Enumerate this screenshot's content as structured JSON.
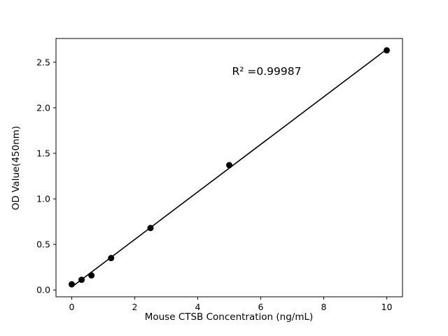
{
  "figure": {
    "background": "#ffffff",
    "foreground": "#000000"
  },
  "chart_data": {
    "type": "scatter",
    "title": "",
    "xlabel": "Mouse CTSB Concentration (ng/mL)",
    "ylabel": "OD Value(450nm)",
    "annotation": "R² =0.99987",
    "r_squared": 0.99987,
    "points": [
      [
        0,
        0.062
      ],
      [
        0.3125,
        0.112
      ],
      [
        0.625,
        0.16
      ],
      [
        1.25,
        0.35
      ],
      [
        2.5,
        0.68
      ],
      [
        5,
        1.37
      ],
      [
        10,
        2.63
      ]
    ],
    "fit_line": {
      "style": "linear-regression",
      "x_start": 0,
      "x_end": 10
    },
    "x_ticks": [
      0,
      2,
      4,
      6,
      8,
      10
    ],
    "y_ticks": [
      0.0,
      0.5,
      1.0,
      1.5,
      2.0,
      2.5
    ],
    "xlim": [
      -0.5,
      10.5
    ],
    "ylim": [
      -0.075,
      2.76
    ],
    "grid": false,
    "legend": "none",
    "marker_color": "#000000",
    "line_color": "#000000"
  }
}
